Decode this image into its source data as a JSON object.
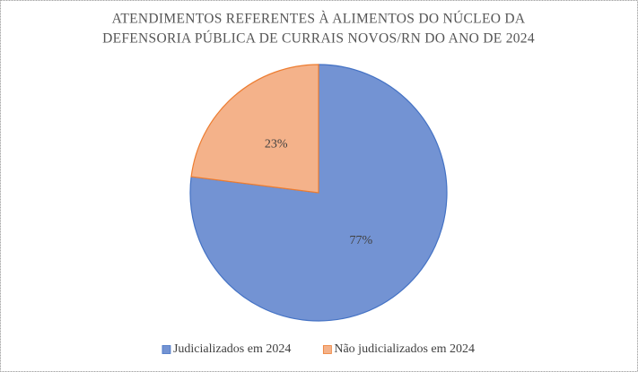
{
  "chart_data": {
    "type": "pie",
    "title": [
      "ATENDIMENTOS  REFERENTES  À ALIMENTOS  DO NÚCLEO DA",
      "DEFENSORIA  PÚBLICA  DE CURRAIS  NOVOS/RN  DO ANO DE 2024"
    ],
    "categories": [
      "Judicializados em 2024",
      "Não judicializados em 2024"
    ],
    "values": [
      77,
      23
    ],
    "value_labels": [
      "77%",
      "23%"
    ],
    "colors": [
      "#7393d3",
      "#f4b28a"
    ],
    "edge_colors": [
      "#4472c4",
      "#ed7d31"
    ],
    "legend": "bottom"
  }
}
